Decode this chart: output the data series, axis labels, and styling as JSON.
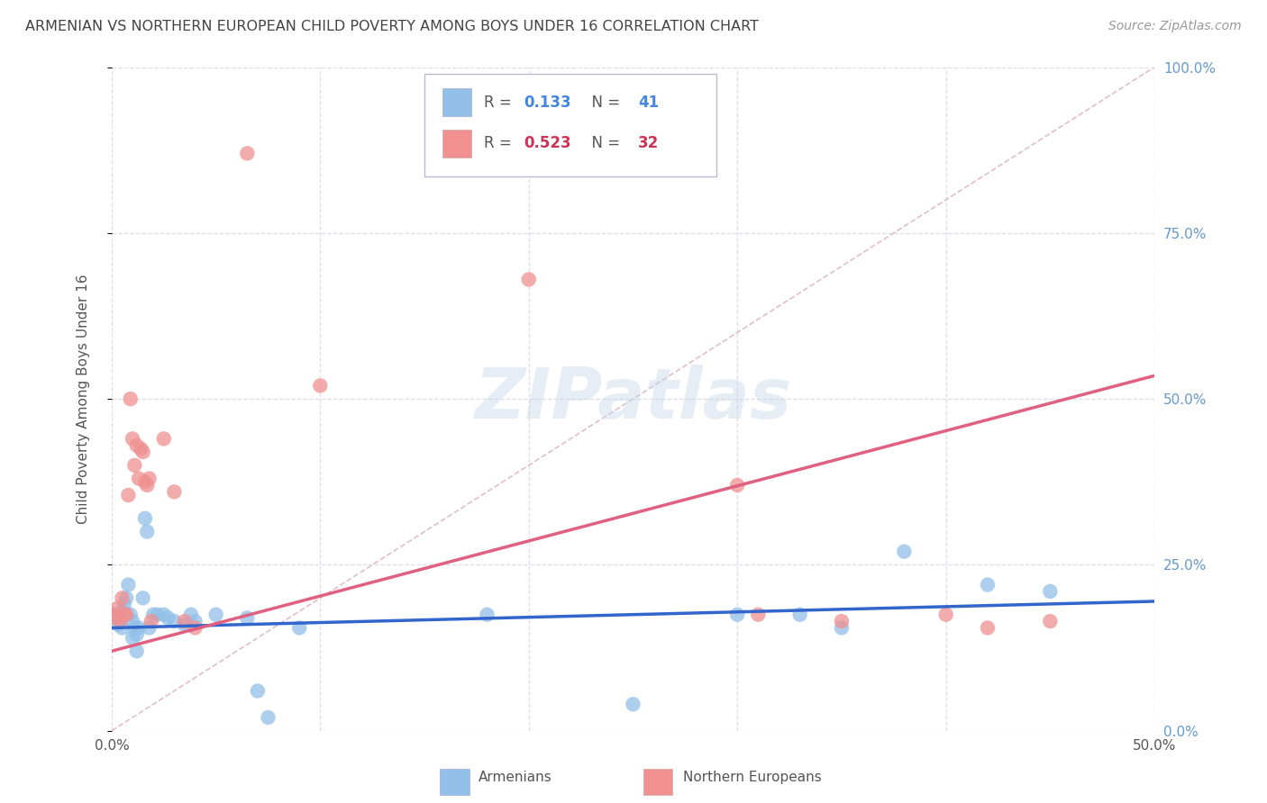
{
  "title": "ARMENIAN VS NORTHERN EUROPEAN CHILD POVERTY AMONG BOYS UNDER 16 CORRELATION CHART",
  "source": "Source: ZipAtlas.com",
  "ylabel": "Child Poverty Among Boys Under 16",
  "xlim": [
    0.0,
    0.5
  ],
  "ylim": [
    0.0,
    1.0
  ],
  "watermark": "ZIPatlas",
  "legend_armenians": {
    "R": "0.133",
    "N": "41"
  },
  "legend_northern_europeans": {
    "R": "0.523",
    "N": "32"
  },
  "armenians_scatter": [
    [
      0.001,
      0.175
    ],
    [
      0.002,
      0.17
    ],
    [
      0.003,
      0.16
    ],
    [
      0.004,
      0.175
    ],
    [
      0.005,
      0.18
    ],
    [
      0.005,
      0.155
    ],
    [
      0.006,
      0.19
    ],
    [
      0.007,
      0.2
    ],
    [
      0.008,
      0.22
    ],
    [
      0.009,
      0.175
    ],
    [
      0.01,
      0.165
    ],
    [
      0.01,
      0.14
    ],
    [
      0.011,
      0.155
    ],
    [
      0.012,
      0.12
    ],
    [
      0.012,
      0.145
    ],
    [
      0.013,
      0.155
    ],
    [
      0.015,
      0.2
    ],
    [
      0.016,
      0.32
    ],
    [
      0.017,
      0.3
    ],
    [
      0.018,
      0.155
    ],
    [
      0.02,
      0.175
    ],
    [
      0.022,
      0.175
    ],
    [
      0.025,
      0.175
    ],
    [
      0.027,
      0.17
    ],
    [
      0.03,
      0.165
    ],
    [
      0.035,
      0.16
    ],
    [
      0.038,
      0.175
    ],
    [
      0.04,
      0.165
    ],
    [
      0.05,
      0.175
    ],
    [
      0.065,
      0.17
    ],
    [
      0.07,
      0.06
    ],
    [
      0.075,
      0.02
    ],
    [
      0.09,
      0.155
    ],
    [
      0.18,
      0.175
    ],
    [
      0.25,
      0.04
    ],
    [
      0.3,
      0.175
    ],
    [
      0.33,
      0.175
    ],
    [
      0.35,
      0.155
    ],
    [
      0.38,
      0.27
    ],
    [
      0.42,
      0.22
    ],
    [
      0.45,
      0.21
    ]
  ],
  "northern_europeans_scatter": [
    [
      0.001,
      0.175
    ],
    [
      0.002,
      0.17
    ],
    [
      0.003,
      0.185
    ],
    [
      0.004,
      0.165
    ],
    [
      0.005,
      0.2
    ],
    [
      0.006,
      0.175
    ],
    [
      0.007,
      0.175
    ],
    [
      0.008,
      0.355
    ],
    [
      0.009,
      0.5
    ],
    [
      0.01,
      0.44
    ],
    [
      0.011,
      0.4
    ],
    [
      0.012,
      0.43
    ],
    [
      0.013,
      0.38
    ],
    [
      0.014,
      0.425
    ],
    [
      0.015,
      0.42
    ],
    [
      0.016,
      0.375
    ],
    [
      0.017,
      0.37
    ],
    [
      0.018,
      0.38
    ],
    [
      0.019,
      0.165
    ],
    [
      0.025,
      0.44
    ],
    [
      0.03,
      0.36
    ],
    [
      0.035,
      0.165
    ],
    [
      0.04,
      0.155
    ],
    [
      0.065,
      0.87
    ],
    [
      0.1,
      0.52
    ],
    [
      0.2,
      0.68
    ],
    [
      0.3,
      0.37
    ],
    [
      0.31,
      0.175
    ],
    [
      0.35,
      0.165
    ],
    [
      0.4,
      0.175
    ],
    [
      0.42,
      0.155
    ],
    [
      0.45,
      0.165
    ]
  ],
  "armenians_line_x": [
    0.0,
    0.5
  ],
  "armenians_line_y": [
    0.155,
    0.195
  ],
  "northern_europeans_line_x": [
    0.0,
    0.5
  ],
  "northern_europeans_line_y": [
    0.12,
    0.535
  ],
  "trendline_x": [
    0.0,
    0.5
  ],
  "trendline_y": [
    0.0,
    1.0
  ],
  "title_color": "#444444",
  "source_color": "#999999",
  "armenians_color": "#92c0e8",
  "northern_europeans_color": "#f09090",
  "armenians_line_color": "#3366cc",
  "northern_europeans_line_color": "#e06080",
  "trendline_color": "#d8b0b8",
  "grid_color": "#ddddee",
  "background_color": "#ffffff",
  "right_axis_color": "#6699cc",
  "legend_R_blue": "#4488dd",
  "legend_N_blue": "#4488dd",
  "legend_R_pink": "#cc3355",
  "legend_N_pink": "#cc3355"
}
